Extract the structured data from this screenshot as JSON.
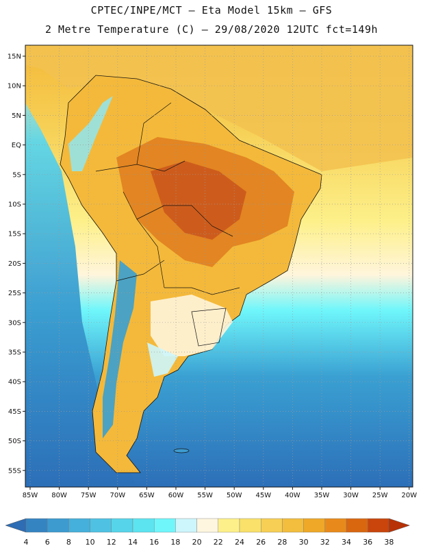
{
  "header": {
    "title_line1": "CPTEC/INPE/MCT –  Eta Model 15km – GFS",
    "title_line2": "2 Metre Temperature (C) – 29/08/2020 12UTC fct=149h"
  },
  "map": {
    "lat_labels": [
      "15N",
      "10N",
      "5N",
      "EQ",
      "5S",
      "10S",
      "15S",
      "20S",
      "25S",
      "30S",
      "35S",
      "40S",
      "45S",
      "50S",
      "55S"
    ],
    "lon_labels": [
      "85W",
      "80W",
      "75W",
      "70W",
      "65W",
      "60W",
      "55W",
      "50W",
      "45W",
      "40W",
      "35W",
      "30W",
      "25W",
      "20W"
    ],
    "colors": {
      "ocean_deep": "#2c6fb8",
      "ocean_mid": "#3aa0d2",
      "ocean_light": "#5cd6ea",
      "cyan": "#63f3fa",
      "pale": "#fff5dc",
      "warm": "#f6c84a",
      "hot": "#e07f20",
      "very_hot": "#c9551b"
    }
  },
  "colorbar": {
    "labels": [
      "4",
      "6",
      "8",
      "10",
      "12",
      "14",
      "16",
      "18",
      "20",
      "22",
      "24",
      "26",
      "28",
      "30",
      "32",
      "34",
      "36",
      "38"
    ],
    "colors": [
      "#2e6db4",
      "#3584c2",
      "#3d9bd0",
      "#45b0db",
      "#4fc2e3",
      "#56d4ea",
      "#5ce4f0",
      "#6ff6fb",
      "#cdf6fc",
      "#fef6df",
      "#fdf08a",
      "#f9e16a",
      "#f6cf54",
      "#f3be3d",
      "#efa828",
      "#e88a1b",
      "#d96710",
      "#c9450c",
      "#b73206"
    ]
  }
}
